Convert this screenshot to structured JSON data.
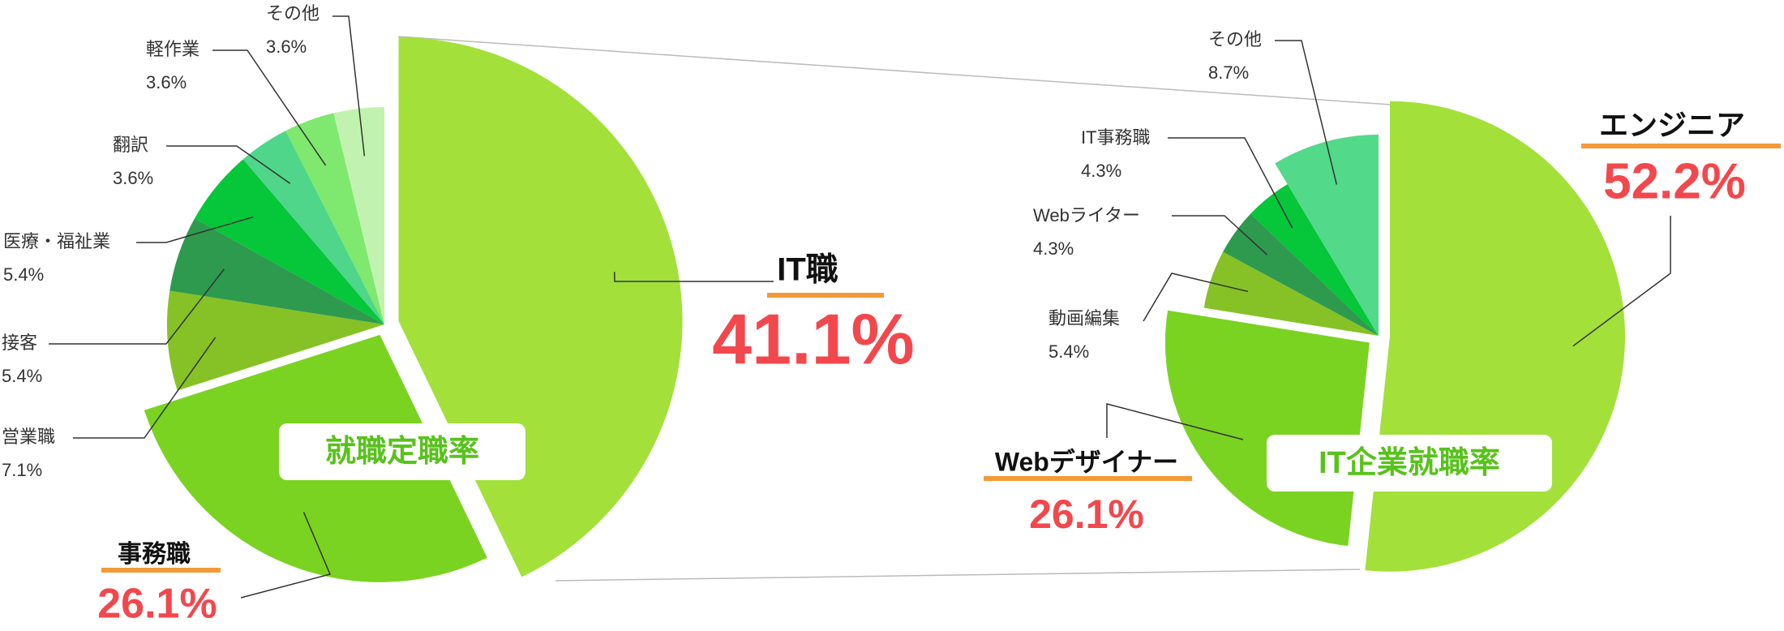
{
  "chart_data": [
    {
      "type": "pie",
      "title": "就職定職率",
      "categories": [
        "IT職",
        "事務職",
        "営業職",
        "接客",
        "医療・福祉業",
        "翻訳",
        "軽作業",
        "その他"
      ],
      "values": [
        41.1,
        26.1,
        7.1,
        5.4,
        5.4,
        3.6,
        3.6,
        3.6
      ],
      "value_labels": [
        "41.1%",
        "26.1%",
        "7.1%",
        "5.4%",
        "5.4%",
        "3.6%",
        "3.6%",
        "3.6%"
      ],
      "colors": [
        "#a3e03a",
        "#7ad321",
        "#86c226",
        "#2e9a4e",
        "#06c63a",
        "#4fd68a",
        "#7ee86f",
        "#c2f2b0"
      ]
    },
    {
      "type": "pie",
      "title": "IT企業就職率",
      "categories": [
        "エンジニア",
        "Webデザイナー",
        "動画編集",
        "Webライター",
        "IT事務職",
        "その他"
      ],
      "values": [
        52.2,
        26.1,
        5.4,
        4.3,
        4.3,
        8.7
      ],
      "value_labels": [
        "52.2%",
        "26.1%",
        "5.4%",
        "4.3%",
        "4.3%",
        "8.7%"
      ],
      "colors": [
        "#a3e03a",
        "#7ad321",
        "#86c226",
        "#2e9a4e",
        "#06c63a",
        "#52d98a"
      ]
    }
  ]
}
